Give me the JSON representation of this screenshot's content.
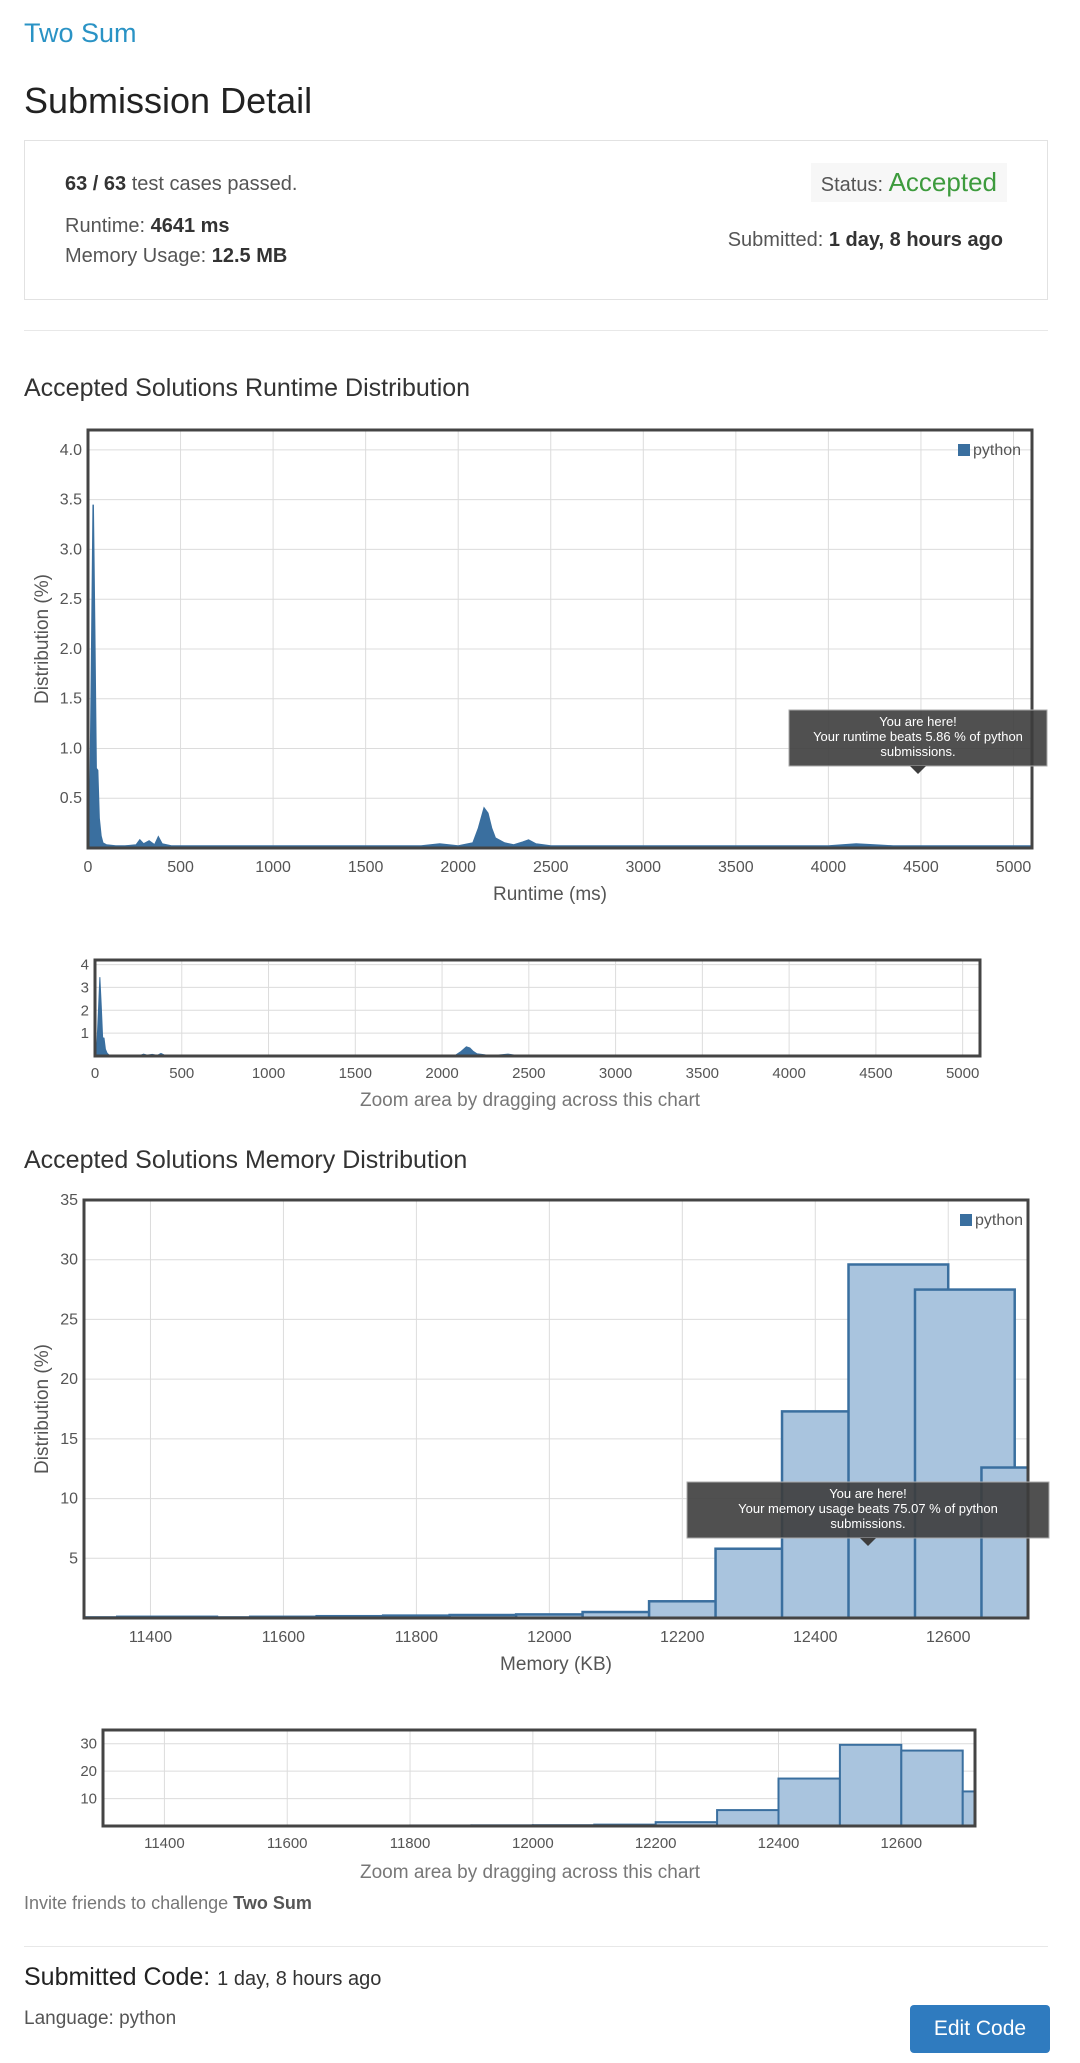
{
  "problem": {
    "title": "Two Sum"
  },
  "page_title": "Submission Detail",
  "summary": {
    "cases_passed": "63 / 63",
    "cases_text": "test cases passed.",
    "runtime_label": "Runtime:",
    "runtime_value": "4641 ms",
    "memory_label": "Memory Usage:",
    "memory_value": "12.5 MB",
    "status_label": "Status:",
    "status_value": "Accepted",
    "status_color": "#3d9b3d",
    "submitted_label": "Submitted:",
    "submitted_value": "1 day, 8 hours ago"
  },
  "runtime_section": {
    "title": "Accepted Solutions Runtime Distribution"
  },
  "memory_section": {
    "title": "Accepted Solutions Memory Distribution"
  },
  "zoom_hint": "Zoom area by dragging across this chart",
  "chart_data": [
    {
      "type": "area",
      "id": "runtime",
      "xlabel": "Runtime (ms)",
      "ylabel": "Distribution (%)",
      "xlim": [
        0,
        5100
      ],
      "ylim": [
        0,
        4.2
      ],
      "x_ticks": [
        0,
        500,
        1000,
        1500,
        2000,
        2500,
        3000,
        3500,
        4000,
        4500,
        5000
      ],
      "y_ticks": [
        0.5,
        1.0,
        1.5,
        2.0,
        2.5,
        3.0,
        3.5,
        4.0
      ],
      "y_tick_labels": [
        "0.5",
        "1.0",
        "1.5",
        "2.0",
        "2.5",
        "3.0",
        "3.5",
        "4.0"
      ],
      "legend": "python",
      "legend_position": "top-right",
      "grid": true,
      "color": "#3a6f9f",
      "series": [
        {
          "name": "python",
          "x": [
            0,
            10,
            20,
            28,
            36,
            44,
            52,
            60,
            70,
            80,
            100,
            150,
            200,
            260,
            280,
            300,
            330,
            360,
            380,
            400,
            450,
            600,
            800,
            1000,
            1200,
            1400,
            1600,
            1800,
            1900,
            2000,
            2080,
            2110,
            2140,
            2160,
            2180,
            2200,
            2250,
            2300,
            2350,
            2380,
            2420,
            2500,
            2700,
            3000,
            3500,
            4000,
            4150,
            4250,
            4350,
            4500,
            4800,
            5100
          ],
          "values": [
            0,
            0.3,
            2.0,
            3.45,
            2.2,
            0.8,
            0.78,
            0.3,
            0.12,
            0.05,
            0.03,
            0.02,
            0.02,
            0.03,
            0.08,
            0.04,
            0.07,
            0.03,
            0.11,
            0.04,
            0.02,
            0.02,
            0.02,
            0.02,
            0.02,
            0.02,
            0.02,
            0.02,
            0.04,
            0.02,
            0.05,
            0.2,
            0.4,
            0.35,
            0.2,
            0.1,
            0.05,
            0.03,
            0.06,
            0.08,
            0.04,
            0.02,
            0.02,
            0.02,
            0.02,
            0.02,
            0.04,
            0.03,
            0.02,
            0.02,
            0.02,
            0.02
          ]
        }
      ],
      "tooltip": {
        "line1": "You are here!",
        "line2": "Your runtime beats 5.86 % of python",
        "line3": "submissions.",
        "x": 4641
      },
      "navigator": {
        "y_ticks": [
          1,
          2,
          3,
          4
        ],
        "x_ticks": [
          0,
          500,
          1000,
          1500,
          2000,
          2500,
          3000,
          3500,
          4000,
          4500,
          5000
        ]
      }
    },
    {
      "type": "bar",
      "id": "memory",
      "xlabel": "Memory (KB)",
      "ylabel": "Distribution (%)",
      "xlim": [
        11300,
        12720
      ],
      "ylim": [
        0,
        35
      ],
      "x_ticks": [
        11400,
        11600,
        11800,
        12000,
        12200,
        12400,
        12600
      ],
      "y_ticks": [
        5,
        10,
        15,
        20,
        25,
        30,
        35
      ],
      "legend": "python",
      "legend_position": "top-right",
      "grid": true,
      "color": "#a9c4de",
      "edge_color": "#3a6f9f",
      "bin_width": 100,
      "bins": [
        11300,
        11400,
        11500,
        11600,
        11700,
        11800,
        11900,
        12000,
        12100,
        12200,
        12300,
        12400,
        12500,
        12600,
        12700
      ],
      "values": [
        0.05,
        0.1,
        0.05,
        0.1,
        0.15,
        0.2,
        0.25,
        0.3,
        0.5,
        1.4,
        5.8,
        17.3,
        29.6,
        27.5,
        12.6
      ],
      "tooltip": {
        "line1": "You are here!",
        "line2": "Your memory usage beats 75.07 % of python",
        "line3": "submissions.",
        "x": 12475
      },
      "navigator": {
        "y_ticks": [
          10,
          20,
          30
        ],
        "x_ticks": [
          11400,
          11600,
          11800,
          12000,
          12200,
          12400,
          12600
        ]
      }
    }
  ],
  "invite": {
    "prefix": "Invite friends to challenge",
    "problem": "Two Sum"
  },
  "code": {
    "title": "Submitted Code:",
    "when": "1 day, 8 hours ago",
    "language_label": "Language: python",
    "edit_button": "Edit Code"
  }
}
